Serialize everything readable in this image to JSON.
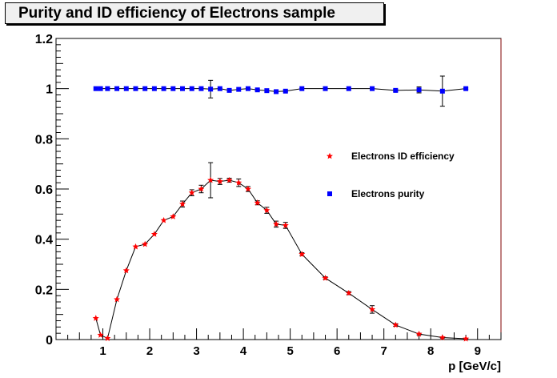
{
  "chart_data": {
    "type": "scatter",
    "title": "Purity and ID efficiency of Electrons sample",
    "xlabel": "p [GeV/c]",
    "ylabel": "",
    "xlim": [
      0,
      9.5
    ],
    "ylim": [
      0,
      1.2
    ],
    "x_ticks": [
      1,
      2,
      3,
      4,
      5,
      6,
      7,
      8,
      9
    ],
    "y_ticks": [
      0,
      0.2,
      0.4,
      0.6,
      0.8,
      1,
      1.2
    ],
    "y_tick_labels": [
      "0",
      "0.2",
      "0.4",
      "0.6",
      "0.8",
      "1",
      "1.2"
    ],
    "grid": false,
    "legend_position": "right",
    "series": [
      {
        "name": "Electrons ID efficiency",
        "color": "#ff0000",
        "marker": "star",
        "connect": true,
        "x": [
          0.85,
          0.95,
          1.1,
          1.3,
          1.5,
          1.7,
          1.9,
          2.1,
          2.3,
          2.5,
          2.7,
          2.9,
          3.1,
          3.3,
          3.5,
          3.7,
          3.9,
          4.1,
          4.3,
          4.5,
          4.7,
          4.9,
          5.25,
          5.75,
          6.25,
          6.75,
          7.25,
          7.75,
          8.25,
          8.75
        ],
        "y": [
          0.085,
          0.018,
          0.005,
          0.16,
          0.275,
          0.37,
          0.38,
          0.42,
          0.475,
          0.49,
          0.54,
          0.585,
          0.6,
          0.635,
          0.63,
          0.635,
          0.625,
          0.6,
          0.545,
          0.515,
          0.46,
          0.455,
          0.34,
          0.245,
          0.185,
          0.12,
          0.058,
          0.022,
          0.008,
          0.003
        ],
        "y_err": [
          0,
          0,
          0,
          0,
          0,
          0,
          0,
          0,
          0,
          0,
          0.012,
          0.012,
          0.015,
          0.07,
          0.012,
          0.008,
          0.015,
          0.01,
          0.008,
          0.012,
          0.012,
          0.012,
          0.006,
          0.005,
          0.006,
          0.015,
          0.005,
          0.003,
          0.002,
          0.001
        ]
      },
      {
        "name": "Electrons purity",
        "color": "#0000ff",
        "marker": "square",
        "connect": true,
        "x": [
          0.85,
          0.95,
          1.1,
          1.3,
          1.5,
          1.7,
          1.9,
          2.1,
          2.3,
          2.5,
          2.7,
          2.9,
          3.1,
          3.3,
          3.5,
          3.7,
          3.9,
          4.1,
          4.3,
          4.5,
          4.7,
          4.9,
          5.25,
          5.75,
          6.25,
          6.75,
          7.25,
          7.75,
          8.25,
          8.75
        ],
        "y": [
          1.0,
          1.0,
          1.0,
          1.0,
          1.0,
          1.0,
          1.0,
          1.0,
          1.0,
          1.0,
          1.0,
          1.0,
          1.0,
          0.998,
          1.0,
          0.993,
          0.997,
          1.0,
          0.995,
          0.992,
          0.988,
          0.99,
          1.0,
          1.0,
          1.0,
          1.0,
          0.993,
          0.995,
          0.99,
          1.0
        ],
        "y_err": [
          0,
          0,
          0,
          0,
          0,
          0,
          0,
          0,
          0,
          0,
          0,
          0,
          0,
          0.035,
          0,
          0.004,
          0,
          0,
          0.003,
          0,
          0.004,
          0.003,
          0,
          0,
          0,
          0,
          0.004,
          0.012,
          0.06,
          0.003
        ]
      }
    ]
  }
}
